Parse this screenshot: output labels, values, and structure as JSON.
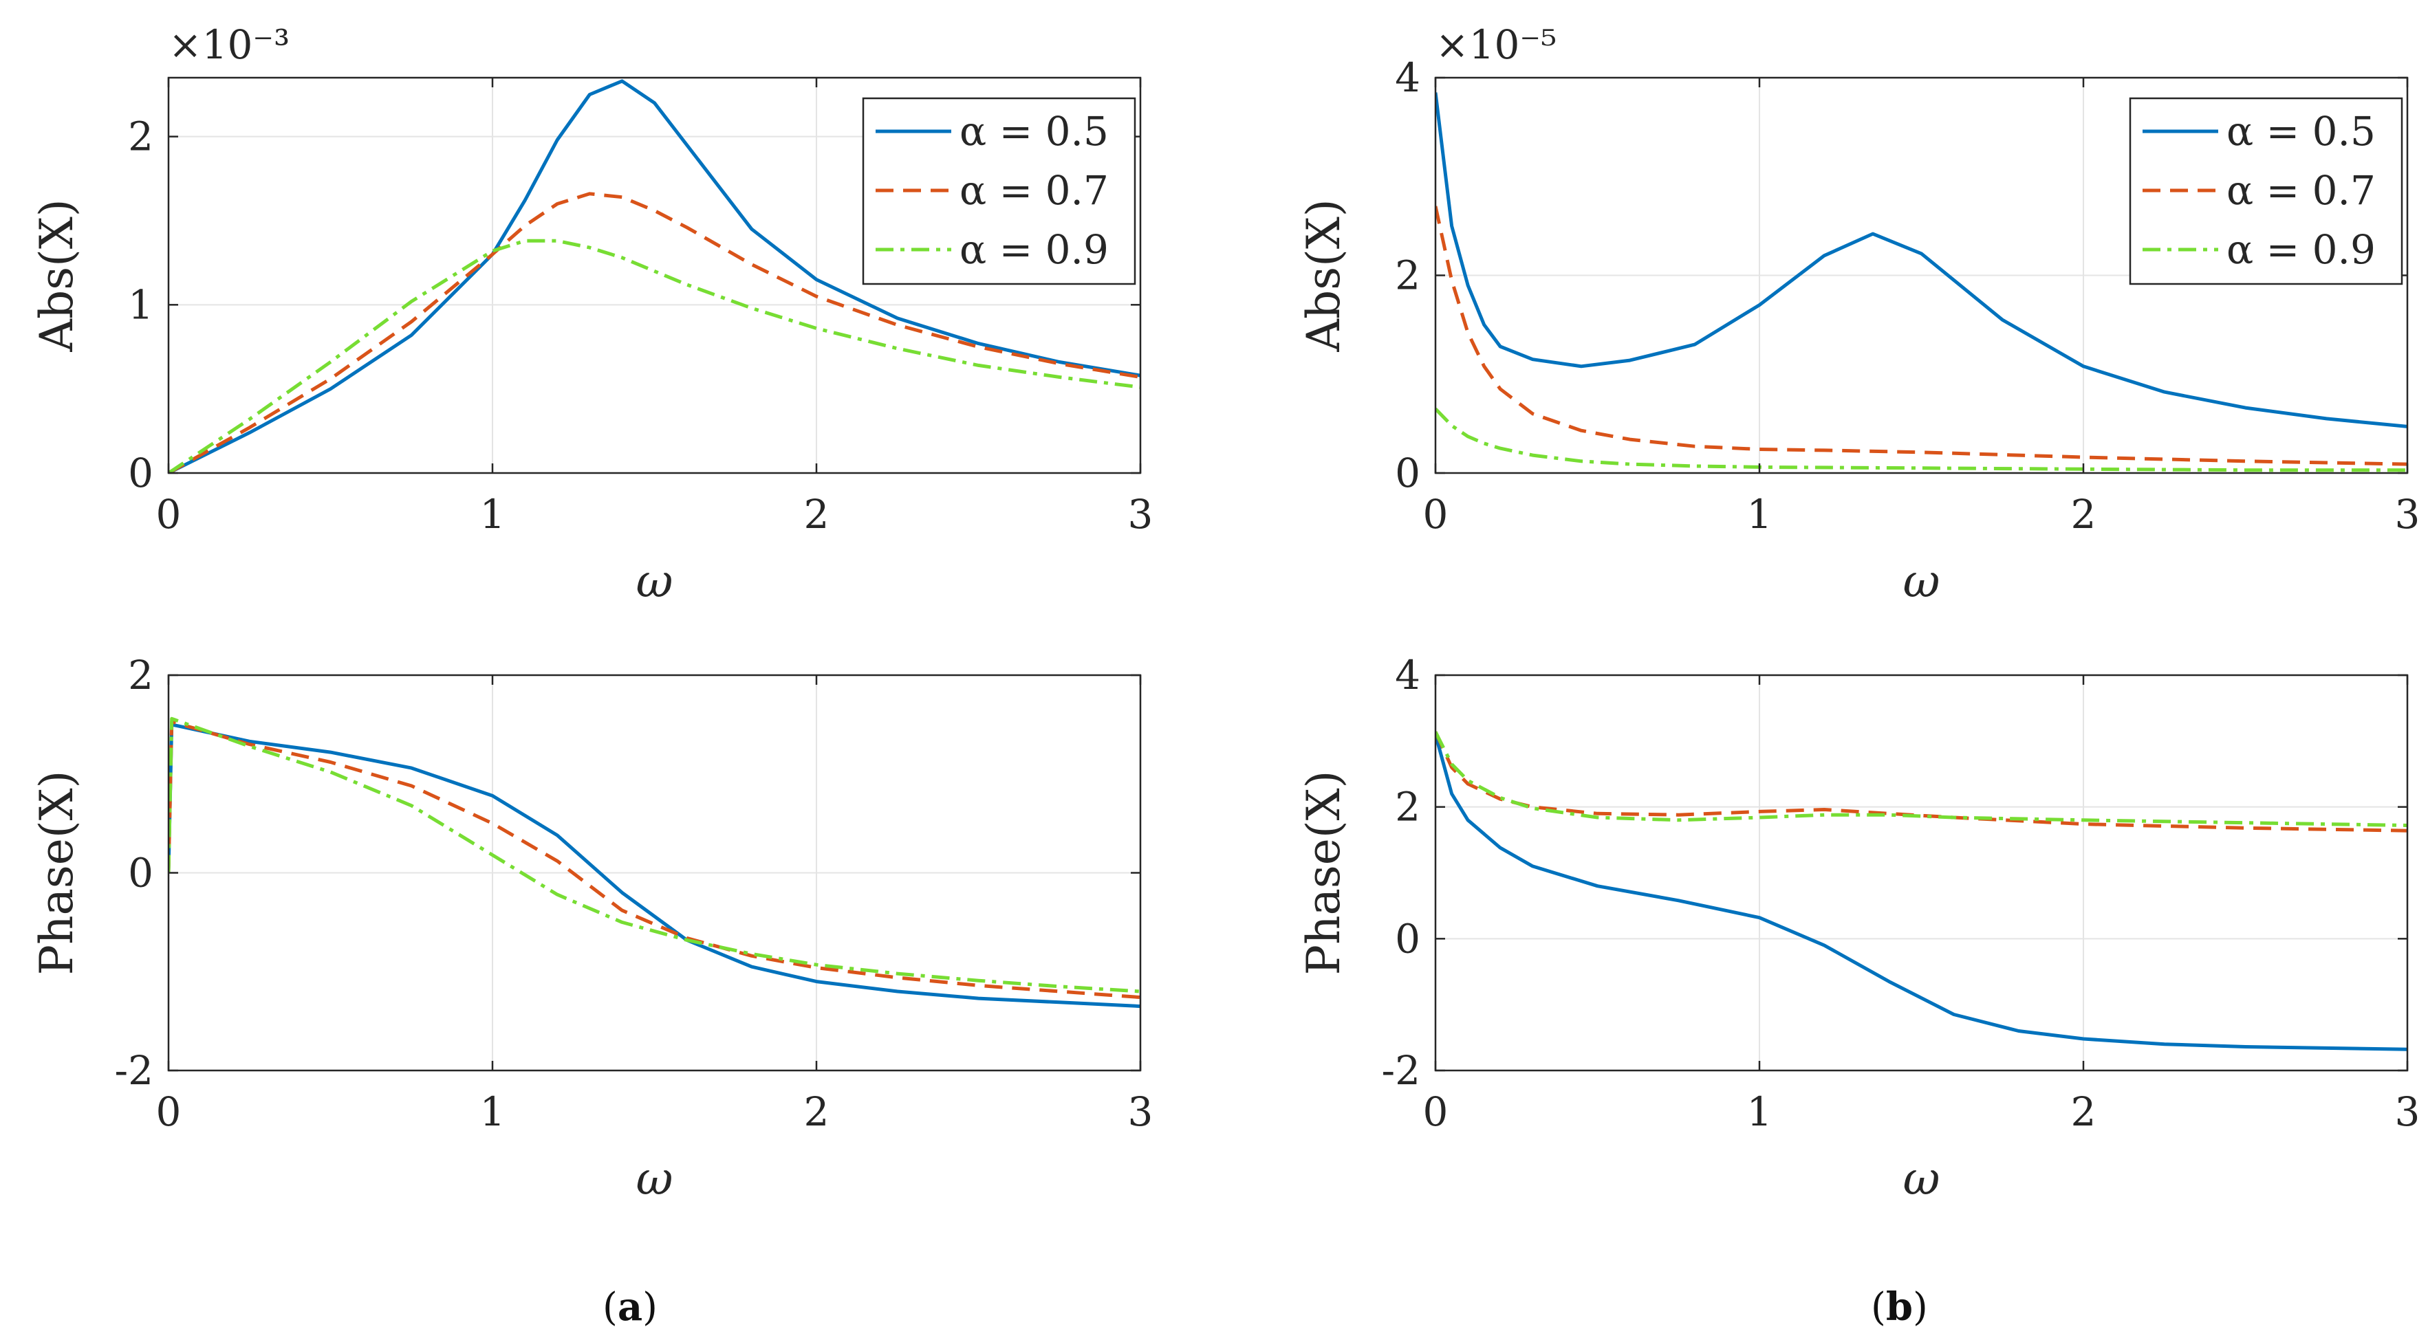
{
  "figure": {
    "captions": {
      "a": "a",
      "b": "b"
    },
    "series_colors": {
      "alpha05": "#0072BD",
      "alpha07": "#D95319",
      "alpha09": "#77DD33"
    },
    "legend_labels": [
      "α = 0.5",
      "α = 0.7",
      "α = 0.9"
    ]
  },
  "chart_data": [
    {
      "id": "a-abs",
      "panel": "a",
      "type": "line",
      "ylabel": "Abs(X)",
      "xlabel": "ω",
      "exponent": "×10⁻³",
      "xlim": [
        0,
        3
      ],
      "ylim": [
        0,
        2.35
      ],
      "xticks": [
        0,
        1,
        2,
        3
      ],
      "yticks": [
        0,
        1,
        2
      ],
      "grid": true,
      "legend": "top-right",
      "series": [
        {
          "name": "α = 0.5",
          "style": "solid",
          "x": [
            0,
            0.25,
            0.5,
            0.75,
            1.0,
            1.1,
            1.2,
            1.3,
            1.4,
            1.5,
            1.6,
            1.8,
            2.0,
            2.25,
            2.5,
            2.75,
            3.0
          ],
          "y": [
            0,
            0.24,
            0.5,
            0.82,
            1.3,
            1.62,
            1.98,
            2.25,
            2.33,
            2.2,
            1.95,
            1.45,
            1.15,
            0.92,
            0.77,
            0.66,
            0.58
          ]
        },
        {
          "name": "α = 0.7",
          "style": "dashed",
          "x": [
            0,
            0.25,
            0.5,
            0.75,
            1.0,
            1.1,
            1.2,
            1.3,
            1.4,
            1.5,
            1.6,
            1.8,
            2.0,
            2.25,
            2.5,
            2.75,
            3.0
          ],
          "y": [
            0,
            0.27,
            0.56,
            0.9,
            1.3,
            1.47,
            1.6,
            1.66,
            1.64,
            1.56,
            1.46,
            1.24,
            1.05,
            0.88,
            0.75,
            0.65,
            0.57
          ]
        },
        {
          "name": "α = 0.9",
          "style": "dashdot",
          "x": [
            0,
            0.25,
            0.5,
            0.75,
            1.0,
            1.1,
            1.2,
            1.3,
            1.4,
            1.5,
            1.6,
            1.8,
            2.0,
            2.25,
            2.5,
            2.75,
            3.0
          ],
          "y": [
            0,
            0.32,
            0.66,
            1.02,
            1.32,
            1.38,
            1.38,
            1.34,
            1.28,
            1.2,
            1.12,
            0.98,
            0.86,
            0.74,
            0.64,
            0.57,
            0.51
          ]
        }
      ]
    },
    {
      "id": "a-phase",
      "panel": "a",
      "type": "line",
      "ylabel": "Phase(X)",
      "xlabel": "ω",
      "xlim": [
        0,
        3
      ],
      "ylim": [
        -2,
        2
      ],
      "xticks": [
        0,
        1,
        2,
        3
      ],
      "yticks": [
        -2,
        0,
        2
      ],
      "grid": true,
      "series": [
        {
          "name": "α = 0.5",
          "style": "solid",
          "x": [
            0,
            0.01,
            0.25,
            0.5,
            0.75,
            1.0,
            1.2,
            1.4,
            1.6,
            1.8,
            2.0,
            2.25,
            2.5,
            2.75,
            3.0
          ],
          "y": [
            0,
            1.5,
            1.33,
            1.22,
            1.06,
            0.78,
            0.38,
            -0.2,
            -0.68,
            -0.95,
            -1.1,
            -1.2,
            -1.27,
            -1.31,
            -1.35
          ]
        },
        {
          "name": "α = 0.7",
          "style": "dashed",
          "x": [
            0,
            0.01,
            0.25,
            0.5,
            0.75,
            1.0,
            1.2,
            1.4,
            1.6,
            1.8,
            2.0,
            2.25,
            2.5,
            2.75,
            3.0
          ],
          "y": [
            0,
            1.53,
            1.3,
            1.12,
            0.88,
            0.5,
            0.12,
            -0.38,
            -0.66,
            -0.84,
            -0.96,
            -1.06,
            -1.14,
            -1.2,
            -1.26
          ]
        },
        {
          "name": "α = 0.9",
          "style": "dashdot",
          "x": [
            0,
            0.01,
            0.25,
            0.5,
            0.75,
            1.0,
            1.2,
            1.4,
            1.6,
            1.8,
            2.0,
            2.25,
            2.5,
            2.75,
            3.0
          ],
          "y": [
            0,
            1.56,
            1.28,
            1.02,
            0.68,
            0.18,
            -0.22,
            -0.5,
            -0.68,
            -0.82,
            -0.93,
            -1.02,
            -1.09,
            -1.15,
            -1.2
          ]
        }
      ]
    },
    {
      "id": "b-abs",
      "panel": "b",
      "type": "line",
      "ylabel": "Abs(X)",
      "xlabel": "ω",
      "exponent": "×10⁻⁵",
      "xlim": [
        0,
        3
      ],
      "ylim": [
        0,
        4
      ],
      "xticks": [
        0,
        1,
        2,
        3
      ],
      "yticks": [
        0,
        2,
        4
      ],
      "grid": true,
      "legend": "top-right",
      "series": [
        {
          "name": "α = 0.5",
          "style": "solid",
          "x": [
            0,
            0.05,
            0.1,
            0.15,
            0.2,
            0.3,
            0.45,
            0.6,
            0.8,
            1.0,
            1.2,
            1.35,
            1.5,
            1.75,
            2.0,
            2.25,
            2.5,
            2.75,
            3.0
          ],
          "y": [
            3.85,
            2.5,
            1.9,
            1.5,
            1.28,
            1.15,
            1.08,
            1.14,
            1.3,
            1.7,
            2.2,
            2.42,
            2.22,
            1.55,
            1.08,
            0.82,
            0.66,
            0.55,
            0.47
          ]
        },
        {
          "name": "α = 0.7",
          "style": "dashed",
          "x": [
            0,
            0.05,
            0.1,
            0.15,
            0.2,
            0.3,
            0.45,
            0.6,
            0.8,
            1.0,
            1.2,
            1.5,
            2.0,
            2.5,
            3.0
          ],
          "y": [
            2.7,
            1.95,
            1.42,
            1.08,
            0.85,
            0.6,
            0.43,
            0.34,
            0.27,
            0.24,
            0.23,
            0.21,
            0.16,
            0.12,
            0.09
          ]
        },
        {
          "name": "α = 0.9",
          "style": "dashdot",
          "x": [
            0,
            0.05,
            0.1,
            0.15,
            0.2,
            0.3,
            0.45,
            0.6,
            0.8,
            1.0,
            1.5,
            2.0,
            2.5,
            3.0
          ],
          "y": [
            0.65,
            0.48,
            0.37,
            0.3,
            0.25,
            0.18,
            0.12,
            0.09,
            0.07,
            0.06,
            0.05,
            0.04,
            0.03,
            0.03
          ]
        }
      ]
    },
    {
      "id": "b-phase",
      "panel": "b",
      "type": "line",
      "ylabel": "Phase(X)",
      "xlabel": "ω",
      "xlim": [
        0,
        3
      ],
      "ylim": [
        -2,
        4
      ],
      "xticks": [
        0,
        1,
        2,
        3
      ],
      "yticks": [
        -2,
        0,
        2,
        4
      ],
      "grid": true,
      "series": [
        {
          "name": "α = 0.5",
          "style": "solid",
          "x": [
            0,
            0.05,
            0.1,
            0.2,
            0.3,
            0.5,
            0.75,
            1.0,
            1.2,
            1.4,
            1.6,
            1.8,
            2.0,
            2.25,
            2.5,
            2.75,
            3.0
          ],
          "y": [
            3.1,
            2.2,
            1.8,
            1.38,
            1.1,
            0.8,
            0.58,
            0.32,
            -0.1,
            -0.65,
            -1.15,
            -1.4,
            -1.52,
            -1.6,
            -1.64,
            -1.66,
            -1.68
          ]
        },
        {
          "name": "α = 0.7",
          "style": "dashed",
          "x": [
            0,
            0.05,
            0.1,
            0.2,
            0.3,
            0.5,
            0.75,
            1.0,
            1.2,
            1.4,
            1.6,
            2.0,
            2.5,
            3.0
          ],
          "y": [
            3.14,
            2.6,
            2.35,
            2.12,
            2.0,
            1.9,
            1.88,
            1.93,
            1.96,
            1.9,
            1.84,
            1.74,
            1.68,
            1.64
          ]
        },
        {
          "name": "α = 0.9",
          "style": "dashdot",
          "x": [
            0,
            0.05,
            0.1,
            0.2,
            0.3,
            0.5,
            0.75,
            1.0,
            1.2,
            1.4,
            1.6,
            2.0,
            2.5,
            3.0
          ],
          "y": [
            3.14,
            2.65,
            2.4,
            2.14,
            1.98,
            1.84,
            1.8,
            1.84,
            1.88,
            1.88,
            1.84,
            1.8,
            1.76,
            1.72
          ]
        }
      ]
    }
  ]
}
